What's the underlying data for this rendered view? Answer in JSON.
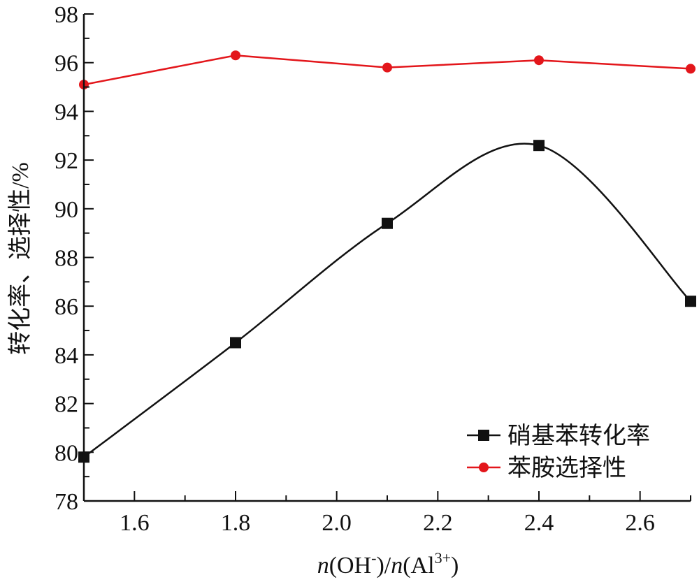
{
  "chart_data": {
    "type": "line",
    "xlabel": {
      "v1": "n",
      "p1": "(OH",
      "sup1": "-",
      "p2": ")/",
      "v2": "n",
      "p3": "(Al",
      "sup2": "3+",
      "p4": ")"
    },
    "ylabel": "转化率、选择性/%",
    "xlim": [
      1.5,
      2.7
    ],
    "ylim": [
      78,
      98
    ],
    "x_ticks": [
      "1.6",
      "1.8",
      "2.0",
      "2.2",
      "2.4",
      "2.6"
    ],
    "y_ticks": [
      "78",
      "80",
      "82",
      "84",
      "86",
      "88",
      "90",
      "92",
      "94",
      "96",
      "98"
    ],
    "x": [
      1.5,
      1.8,
      2.1,
      2.4,
      2.7
    ],
    "series": [
      {
        "name": "硝基苯转化率",
        "values": [
          79.8,
          84.5,
          89.4,
          92.6,
          86.2
        ],
        "color": "#111111",
        "marker": "square",
        "smooth": true
      },
      {
        "name": "苯胺选择性",
        "values": [
          95.1,
          96.3,
          95.8,
          96.1,
          95.75
        ],
        "color": "#e3161b",
        "marker": "circle",
        "smooth": false
      }
    ],
    "legend_position": "bottom-right",
    "grid": false
  }
}
